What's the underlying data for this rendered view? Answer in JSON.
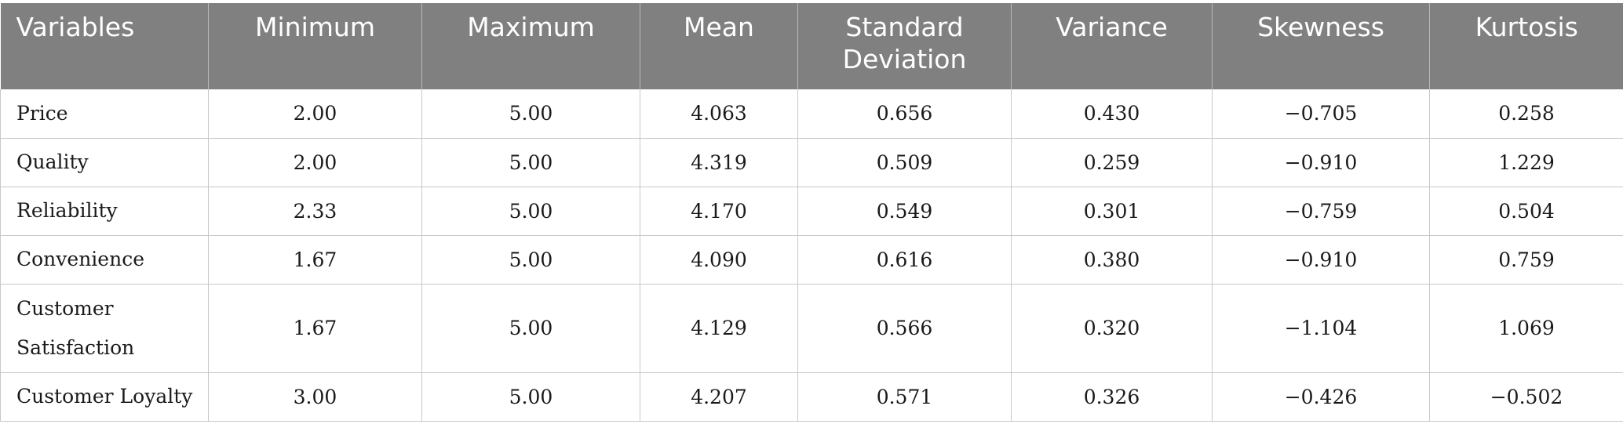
{
  "headers": [
    "Variables",
    "Minimum",
    "Maximum",
    "Mean",
    "Standard Deviation",
    "Variance",
    "Skewness",
    "Kurtosis"
  ],
  "rows": [
    {
      "variable": "Price",
      "minimum": "2.00",
      "maximum": "5.00",
      "mean": "4.063",
      "sd": "0.656",
      "variance": "0.430",
      "skewness": "−0.705",
      "kurtosis": "0.258"
    },
    {
      "variable": "Quality",
      "minimum": "2.00",
      "maximum": "5.00",
      "mean": "4.319",
      "sd": "0.509",
      "variance": "0.259",
      "skewness": "−0.910",
      "kurtosis": "1.229"
    },
    {
      "variable": "Reliability",
      "minimum": "2.33",
      "maximum": "5.00",
      "mean": "4.170",
      "sd": "0.549",
      "variance": "0.301",
      "skewness": "−0.759",
      "kurtosis": "0.504"
    },
    {
      "variable": "Convenience",
      "minimum": "1.67",
      "maximum": "5.00",
      "mean": "4.090",
      "sd": "0.616",
      "variance": "0.380",
      "skewness": "−0.910",
      "kurtosis": "0.759"
    },
    {
      "variable": "Customer Satisfaction",
      "minimum": "1.67",
      "maximum": "5.00",
      "mean": "4.129",
      "sd": "0.566",
      "variance": "0.320",
      "skewness": "−1.104",
      "kurtosis": "1.069"
    },
    {
      "variable": "Customer Loyalty",
      "minimum": "3.00",
      "maximum": "5.00",
      "mean": "4.207",
      "sd": "0.571",
      "variance": "0.326",
      "skewness": "−0.426",
      "kurtosis": "−0.502"
    }
  ],
  "colors": {
    "header_bg": "#808080",
    "header_text": "#ffffff",
    "grid_line": "#c8c8c8"
  }
}
